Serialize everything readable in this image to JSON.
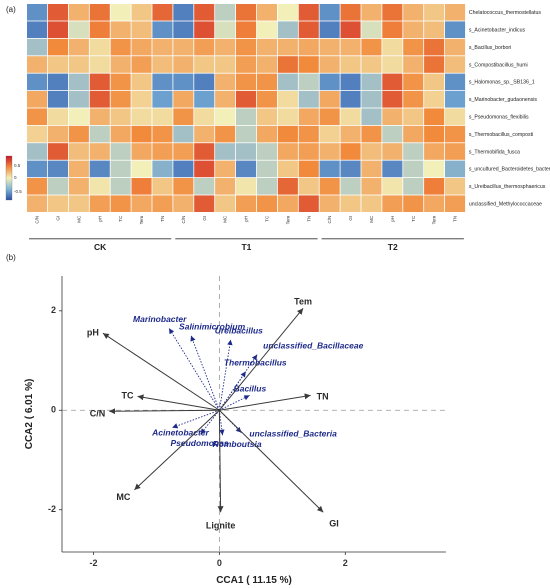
{
  "panel_a_label": "(a)",
  "panel_b_label": "(b)",
  "colors": {
    "heat_low": "#2c4ea6",
    "heat_mid": "#f2efb8",
    "heat_high": "#c8152a",
    "taxa_arrow": "#1e2a8a",
    "env_arrow": "#3a3a3a",
    "taxa_text": "#1e2a8a",
    "env_text": "#2a2a2a"
  },
  "chart_data": [
    {
      "type": "heatmap",
      "groups": [
        "CK",
        "T1",
        "T2"
      ],
      "columns": [
        "C/N",
        "GI",
        "MC",
        "pH",
        "TC",
        "Tem",
        "TN"
      ],
      "rows": [
        "Chelatococcus_thermostellatus",
        "s_Acinetobacter_indicus",
        "s_Bacillus_borbori",
        "s_Compostibacillus_humi",
        "s_Halomonas_sp._SB136_1",
        "s_Marinobacter_gudaonensis",
        "s_Pseudomonas_flexibilis",
        "s_Thermobacillus_composti",
        "s_Thermobifida_fusca",
        "s_uncultured_Bacteroidetes_bacterium",
        "s_Ureibacillus_thermosphaericus",
        "unclassified_Methylococcaceae"
      ],
      "colorbar": {
        "min": -0.5,
        "max": 0.5,
        "ticks": [
          "0.5",
          "0",
          "-0.5"
        ]
      },
      "values": {
        "CK": [
          [
            -0.6,
            0.7,
            0.3,
            0.6,
            0.0,
            0.2,
            0.65
          ],
          [
            -0.7,
            0.75,
            -0.1,
            0.55,
            0.3,
            0.25,
            -0.6
          ],
          [
            -0.3,
            0.5,
            0.3,
            0.1,
            0.45,
            0.35,
            0.3
          ],
          [
            0.3,
            0.2,
            0.2,
            0.1,
            0.3,
            0.4,
            0.25
          ],
          [
            -0.6,
            -0.7,
            -0.3,
            0.7,
            0.45,
            0.2,
            -0.6
          ],
          [
            0.35,
            -0.7,
            -0.3,
            0.7,
            0.45,
            0.15,
            -0.5
          ],
          [
            0.45,
            0.1,
            0.0,
            0.3,
            0.2,
            0.1,
            0.1
          ],
          [
            0.15,
            0.3,
            0.45,
            -0.2,
            0.35,
            0.5,
            0.45
          ],
          [
            -0.3,
            0.7,
            0.25,
            0.3,
            -0.2,
            0.35,
            0.4
          ],
          [
            -0.6,
            -0.65,
            0.3,
            -0.65,
            -0.2,
            0.0,
            -0.4
          ],
          [
            0.45,
            -0.2,
            0.3,
            0.05,
            -0.2,
            0.55,
            0.2
          ],
          [
            0.3,
            0.2,
            0.2,
            0.4,
            0.45,
            0.35,
            0.4
          ]
        ],
        "T1": [
          [
            -0.7,
            0.7,
            -0.2,
            0.6,
            0.3,
            0.0,
            0.7
          ],
          [
            -0.7,
            0.75,
            -0.1,
            0.55,
            0.0,
            -0.3,
            0.7
          ],
          [
            0.3,
            0.4,
            0.3,
            0.45,
            0.3,
            0.3,
            0.35
          ],
          [
            0.3,
            0.2,
            0.2,
            0.4,
            0.3,
            0.6,
            0.5
          ],
          [
            -0.6,
            -0.7,
            0.3,
            0.45,
            0.45,
            -0.3,
            -0.2
          ],
          [
            0.35,
            -0.5,
            0.3,
            0.7,
            0.45,
            0.1,
            -0.3
          ],
          [
            0.45,
            0.1,
            0.0,
            -0.2,
            0.2,
            0.1,
            0.35
          ],
          [
            -0.3,
            0.3,
            0.45,
            -0.2,
            0.35,
            0.5,
            0.45
          ],
          [
            0.4,
            0.7,
            -0.3,
            -0.3,
            -0.2,
            0.35,
            0.4
          ],
          [
            -0.7,
            0.75,
            0.3,
            -0.65,
            -0.2,
            0.2,
            0.5
          ],
          [
            0.45,
            -0.2,
            0.3,
            0.05,
            -0.2,
            0.65,
            0.2
          ],
          [
            0.3,
            0.7,
            0.2,
            0.4,
            0.45,
            0.35,
            0.7
          ]
        ],
        "T2": [
          [
            -0.6,
            0.6,
            0.3,
            0.6,
            0.3,
            0.2,
            0.3
          ],
          [
            -0.7,
            0.75,
            -0.1,
            0.55,
            0.3,
            0.25,
            -0.6
          ],
          [
            0.3,
            0.3,
            0.45,
            0.1,
            0.45,
            0.6,
            0.3
          ],
          [
            0.3,
            0.2,
            0.2,
            0.1,
            0.3,
            0.6,
            0.25
          ],
          [
            -0.6,
            -0.7,
            -0.3,
            0.7,
            0.45,
            0.2,
            -0.6
          ],
          [
            0.35,
            -0.7,
            -0.3,
            0.7,
            0.45,
            0.15,
            -0.5
          ],
          [
            0.45,
            0.1,
            -0.3,
            0.3,
            0.2,
            0.5,
            0.1
          ],
          [
            0.15,
            0.3,
            0.45,
            -0.2,
            0.35,
            0.5,
            0.45
          ],
          [
            0.3,
            0.5,
            0.25,
            0.3,
            -0.2,
            0.35,
            0.4
          ],
          [
            -0.6,
            -0.65,
            0.3,
            -0.65,
            -0.2,
            0.0,
            -0.4
          ],
          [
            0.45,
            -0.2,
            0.3,
            0.05,
            -0.2,
            0.55,
            0.2
          ],
          [
            0.3,
            0.2,
            0.2,
            0.4,
            0.45,
            0.35,
            0.4
          ]
        ]
      }
    },
    {
      "type": "scatter",
      "subtype": "ordination-biplot",
      "xlabel": "CCA1 ( 11.15 %)",
      "ylabel": "CCA2 ( 6.01 %)",
      "xlim": [
        -2.5,
        3.6
      ],
      "ylim": [
        -2.85,
        2.7
      ],
      "xticks": [
        -2,
        0,
        2
      ],
      "yticks": [
        -2,
        0,
        2
      ],
      "reference_lines": {
        "x": 0,
        "y": 0
      },
      "env_vectors": [
        {
          "label": "Tem",
          "x": 1.33,
          "y": 2.05
        },
        {
          "label": "pH",
          "x": -1.85,
          "y": 1.55
        },
        {
          "label": "TC",
          "x": -1.3,
          "y": 0.28
        },
        {
          "label": "C/N",
          "x": -1.75,
          "y": -0.02
        },
        {
          "label": "TN",
          "x": 1.45,
          "y": 0.3
        },
        {
          "label": "MC",
          "x": -1.35,
          "y": -1.6
        },
        {
          "label": "Lignite",
          "x": 0.02,
          "y": -2.05
        },
        {
          "label": "GI",
          "x": 1.65,
          "y": -2.05
        }
      ],
      "taxa_vectors": [
        {
          "label": "Marinobacter",
          "x": -0.8,
          "y": 1.65
        },
        {
          "label": "Salinimicrobium",
          "x": -0.45,
          "y": 1.5
        },
        {
          "label": "Ureibacillus",
          "x": 0.18,
          "y": 1.42
        },
        {
          "label": "unclassified_Bacillaceae",
          "x": 0.6,
          "y": 1.12
        },
        {
          "label": "Thermobacillus",
          "x": 0.42,
          "y": 0.78
        },
        {
          "label": "Bacillus",
          "x": 0.48,
          "y": 0.3
        },
        {
          "label": "Acinetobacter",
          "x": -0.75,
          "y": -0.35
        },
        {
          "label": "Pseudomonas",
          "x": -0.3,
          "y": -0.48
        },
        {
          "label": "Romboutsia",
          "x": 0.05,
          "y": -0.5
        },
        {
          "label": "unclassified_Bacteria",
          "x": 0.35,
          "y": -0.45
        }
      ]
    }
  ]
}
